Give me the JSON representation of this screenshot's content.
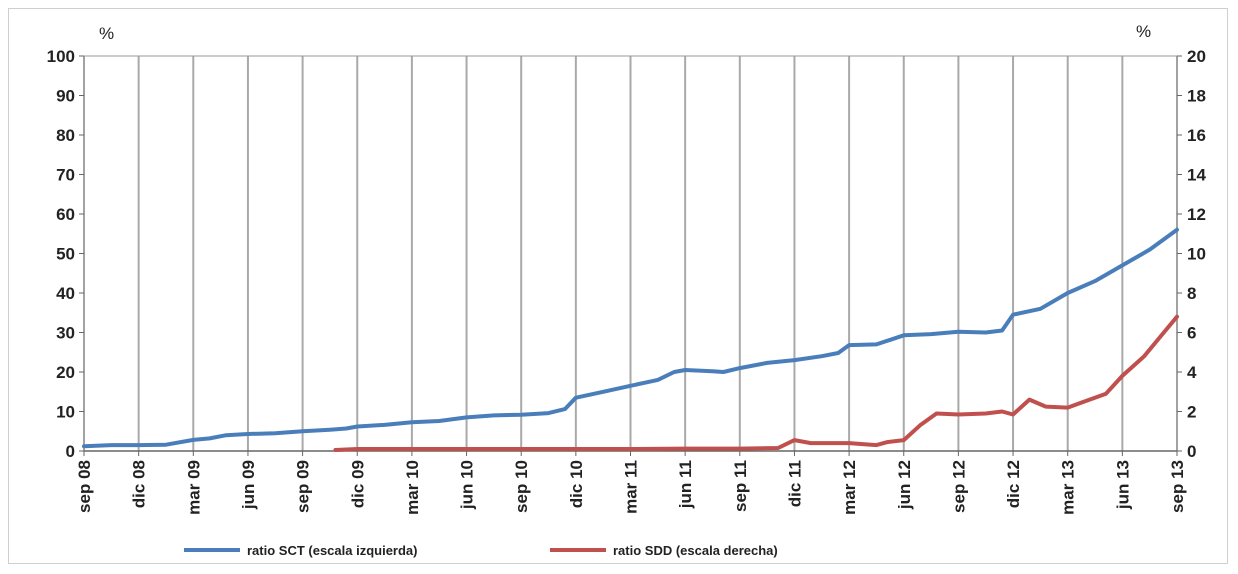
{
  "chart_data": {
    "type": "line",
    "x": [
      "sep 08",
      "dic 08",
      "mar 09",
      "jun 09",
      "sep 09",
      "dic 09",
      "mar 10",
      "jun 10",
      "sep 10",
      "dic 10",
      "mar 11",
      "jun 11",
      "sep 11",
      "dic 11",
      "mar 12",
      "jun 12",
      "sep 12",
      "dic 12",
      "mar 13",
      "jun 13",
      "sep 13"
    ],
    "left_axis": {
      "unit": "%",
      "range": [
        0,
        100
      ],
      "ticks": [
        0,
        10,
        20,
        30,
        40,
        50,
        60,
        70,
        80,
        90,
        100
      ]
    },
    "right_axis": {
      "unit": "%",
      "range": [
        0,
        20
      ],
      "ticks": [
        0,
        2,
        4,
        6,
        8,
        10,
        12,
        14,
        16,
        18,
        20
      ]
    },
    "grid": "vertical",
    "legend_position": "bottom",
    "series": [
      {
        "name": "ratio SCT (escala izquierda)",
        "axis": "left",
        "color": "#4a7ebb",
        "points": [
          [
            0,
            1.2
          ],
          [
            0.5,
            1.5
          ],
          [
            1,
            1.5
          ],
          [
            1.5,
            1.6
          ],
          [
            2,
            2.8
          ],
          [
            2.3,
            3.2
          ],
          [
            2.6,
            4.0
          ],
          [
            3,
            4.3
          ],
          [
            3.5,
            4.5
          ],
          [
            4,
            5.0
          ],
          [
            4.5,
            5.4
          ],
          [
            4.8,
            5.7
          ],
          [
            5,
            6.2
          ],
          [
            5.5,
            6.6
          ],
          [
            6,
            7.3
          ],
          [
            6.5,
            7.6
          ],
          [
            7,
            8.5
          ],
          [
            7.5,
            9.0
          ],
          [
            8,
            9.2
          ],
          [
            8.5,
            9.6
          ],
          [
            8.8,
            10.6
          ],
          [
            9,
            13.5
          ],
          [
            9.5,
            15.0
          ],
          [
            10,
            16.5
          ],
          [
            10.5,
            18.0
          ],
          [
            10.8,
            20.0
          ],
          [
            11,
            20.5
          ],
          [
            11.5,
            20.2
          ],
          [
            11.7,
            20.0
          ],
          [
            12,
            21.0
          ],
          [
            12.5,
            22.3
          ],
          [
            13,
            23.0
          ],
          [
            13.5,
            24.0
          ],
          [
            13.8,
            24.8
          ],
          [
            14,
            26.8
          ],
          [
            14.5,
            27.0
          ],
          [
            15,
            29.3
          ],
          [
            15.5,
            29.6
          ],
          [
            16,
            30.2
          ],
          [
            16.5,
            30.0
          ],
          [
            16.8,
            30.5
          ],
          [
            17,
            34.5
          ],
          [
            17.5,
            36.0
          ],
          [
            18,
            40.0
          ],
          [
            18.5,
            43.0
          ],
          [
            19,
            47.0
          ],
          [
            19.5,
            51.0
          ],
          [
            20,
            56.0
          ]
        ]
      },
      {
        "name": "ratio SDD (escala derecha)",
        "axis": "right",
        "color": "#c0504d",
        "points": [
          [
            4.6,
            0.05
          ],
          [
            5,
            0.1
          ],
          [
            6,
            0.1
          ],
          [
            7,
            0.1
          ],
          [
            8,
            0.1
          ],
          [
            9,
            0.1
          ],
          [
            10,
            0.1
          ],
          [
            11,
            0.12
          ],
          [
            12,
            0.12
          ],
          [
            12.7,
            0.15
          ],
          [
            13,
            0.55
          ],
          [
            13.3,
            0.4
          ],
          [
            14,
            0.4
          ],
          [
            14.5,
            0.3
          ],
          [
            14.7,
            0.45
          ],
          [
            15,
            0.55
          ],
          [
            15.3,
            1.3
          ],
          [
            15.6,
            1.9
          ],
          [
            16,
            1.85
          ],
          [
            16.5,
            1.9
          ],
          [
            16.8,
            2.0
          ],
          [
            17,
            1.85
          ],
          [
            17.3,
            2.6
          ],
          [
            17.6,
            2.25
          ],
          [
            18,
            2.2
          ],
          [
            18.3,
            2.5
          ],
          [
            18.7,
            2.9
          ],
          [
            19,
            3.8
          ],
          [
            19.4,
            4.8
          ],
          [
            19.7,
            5.8
          ],
          [
            20,
            6.8
          ]
        ]
      }
    ]
  }
}
